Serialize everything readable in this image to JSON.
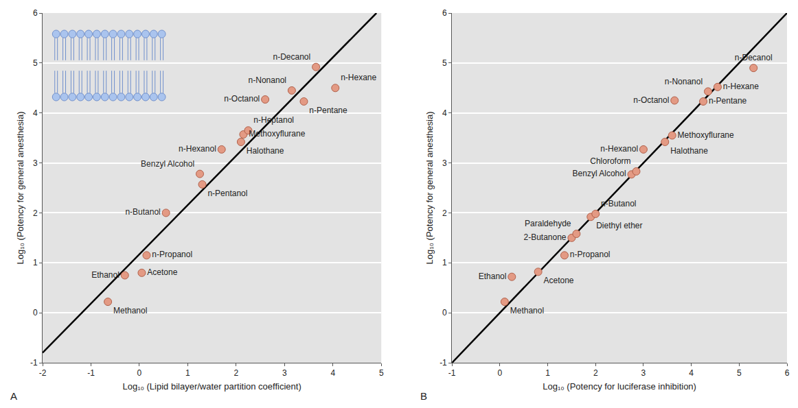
{
  "chart_data": [
    {
      "type": "scatter",
      "label": "A",
      "x_label": "Log₁₀ (Lipid bilayer/water partition coefficient)",
      "y_label": "Log₁₀ (Potency for general anesthesia)",
      "xlim": [
        -2,
        5
      ],
      "ylim": [
        -1,
        6
      ],
      "xticks": [
        -2,
        -1,
        0,
        1,
        2,
        3,
        4,
        5
      ],
      "yticks": [
        -1,
        0,
        1,
        2,
        3,
        4,
        5,
        6
      ],
      "grid": "y",
      "color": "#e39a84",
      "marker": "circle",
      "point_labels": [
        "Methanol",
        "Ethanol",
        "Acetone",
        "n-Propanol",
        "n-Butanol",
        "n-Pentanol",
        "Benzyl Alcohol",
        "n-Hexanol",
        "Halothane",
        "Methoxyflurane",
        "n-Heptanol",
        "n-Octanol",
        "n-Nonanol",
        "n-Pentane",
        "n-Decanol",
        "n-Hexane"
      ],
      "x": [
        -0.65,
        -0.3,
        0.05,
        0.15,
        0.55,
        1.3,
        1.25,
        1.7,
        2.1,
        2.15,
        2.25,
        2.6,
        3.15,
        3.4,
        3.65,
        4.05
      ],
      "values": [
        0.22,
        0.75,
        0.8,
        1.15,
        2.0,
        2.57,
        2.78,
        3.27,
        3.42,
        3.57,
        3.65,
        4.27,
        4.45,
        4.23,
        4.92,
        4.5
      ],
      "lines": [
        {
          "x": [
            -2,
            4.9
          ],
          "values": [
            -0.8,
            6
          ],
          "color": "#000000",
          "line_style": "solid"
        }
      ]
    },
    {
      "type": "scatter",
      "label": "B",
      "x_label": "Log₁₀ (Potency for luciferase inhibition)",
      "y_label": "Log₁₀ (Potency for general anesthesia)",
      "xlim": [
        -1,
        6
      ],
      "ylim": [
        -1,
        6
      ],
      "xticks": [
        -1,
        0,
        1,
        2,
        3,
        4,
        5,
        6
      ],
      "yticks": [
        -1,
        0,
        1,
        2,
        3,
        4,
        5,
        6
      ],
      "grid": "y",
      "color": "#e39a84",
      "marker": "circle",
      "point_labels": [
        "Methanol",
        "Ethanol",
        "Acetone",
        "n-Propanol",
        "2-Butanone",
        "Paraldehyde",
        "Diethyl ether",
        "n-Butanol",
        "Benzyl Alcohol",
        "Chloroform",
        "n-Hexanol",
        "Halothane",
        "Methoxyflurane",
        "n-Octanol",
        "n-Pentane",
        "n-Nonanol",
        "n-Hexane",
        "n-Decanol"
      ],
      "x": [
        0.1,
        0.25,
        0.8,
        1.35,
        1.5,
        1.6,
        1.9,
        2.0,
        2.75,
        2.85,
        3.0,
        3.45,
        3.6,
        3.65,
        4.25,
        4.35,
        4.55,
        5.3
      ],
      "values": [
        0.22,
        0.72,
        0.82,
        1.15,
        1.5,
        1.58,
        1.92,
        1.98,
        2.77,
        2.83,
        3.27,
        3.42,
        3.55,
        4.25,
        4.23,
        4.43,
        4.52,
        4.9
      ],
      "lines": [
        {
          "x": [
            -1,
            6
          ],
          "values": [
            -1,
            6
          ],
          "color": "#000000",
          "line_style": "solid"
        }
      ]
    }
  ]
}
